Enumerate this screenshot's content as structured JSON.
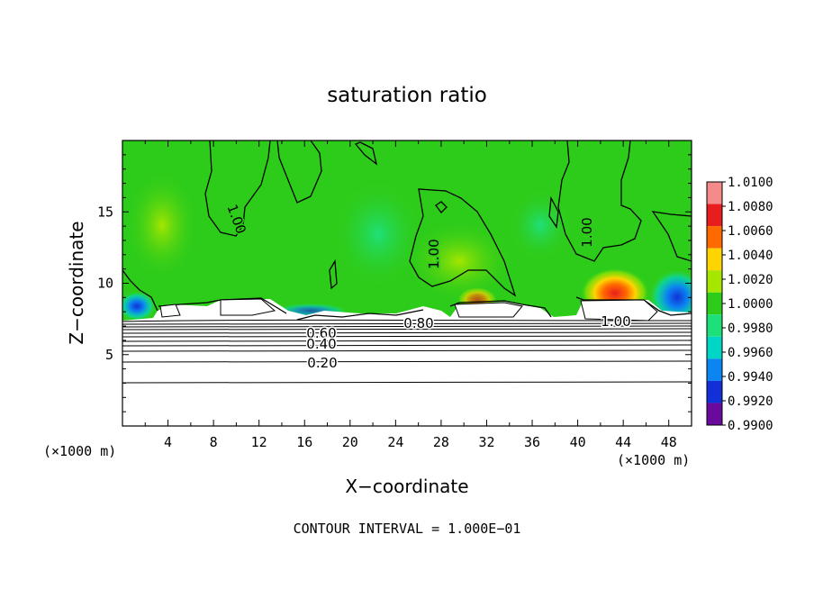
{
  "chart_data": {
    "type": "heatmap",
    "title": "saturation ratio",
    "xlabel": "X−coordinate",
    "ylabel": "Z−coordinate",
    "x_unit_left": "(×1000 m)",
    "x_unit_right": "(×1000 m)",
    "footer": "CONTOUR INTERVAL = 1.000E−01",
    "xlim": [
      0,
      50
    ],
    "ylim": [
      0,
      20
    ],
    "x_ticks": [
      4,
      8,
      12,
      16,
      20,
      24,
      28,
      32,
      36,
      40,
      44,
      48
    ],
    "x_tick_labels": [
      "4",
      "8",
      "12",
      "16",
      "20",
      "24",
      "28",
      "32",
      "36",
      "40",
      "44",
      "48"
    ],
    "y_ticks": [
      5,
      10,
      15
    ],
    "y_tick_labels": [
      "5",
      "10",
      "15"
    ],
    "colorbar": {
      "labels": [
        "1.0100",
        "1.0080",
        "1.0060",
        "1.0040",
        "1.0020",
        "1.0000",
        "0.9980",
        "0.9960",
        "0.9940",
        "0.9920",
        "0.9900"
      ],
      "colors": [
        "#f58a8a",
        "#e81e1e",
        "#ff6a00",
        "#ffd400",
        "#a6e600",
        "#2ecc1a",
        "#1ee07a",
        "#00d6c8",
        "#0b86f0",
        "#1230d8",
        "#6a0a9c"
      ]
    },
    "contour_labels": [
      "1.00",
      "1.00",
      "1.00",
      "1.00",
      "0.80",
      "0.60",
      "0.40",
      "0.20"
    ],
    "contour_levels": [
      0.2,
      0.4,
      0.6,
      0.8,
      1.0
    ],
    "field_value_background": 1.0,
    "dry_layer_top_z": 7.5
  }
}
